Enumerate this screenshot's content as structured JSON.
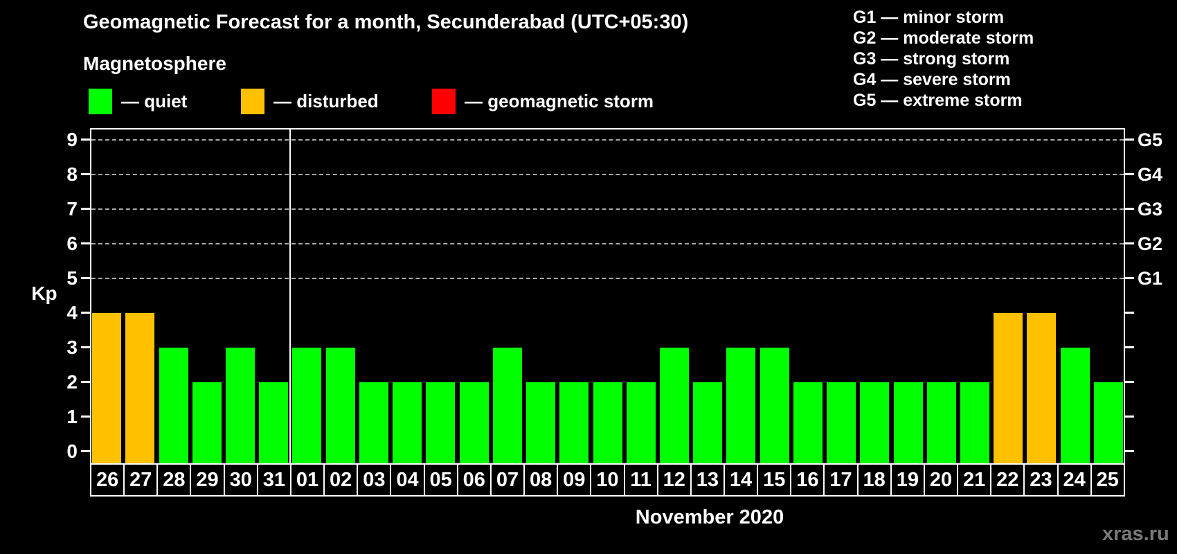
{
  "header": {
    "title": "Geomagnetic Forecast for a month, Secunderabad (UTC+05:30)",
    "subtitle": "Magnetosphere"
  },
  "legend": [
    {
      "name": "quiet",
      "label": "— quiet",
      "color": "#00ff00"
    },
    {
      "name": "disturbed",
      "label": "— disturbed",
      "color": "#ffc000"
    },
    {
      "name": "geomagnetic-storm",
      "label": "— geomagnetic storm",
      "color": "#ff0000"
    }
  ],
  "g_scale_legend": [
    "G1 — minor storm",
    "G2 — moderate storm",
    "G3 — strong storm",
    "G4 — severe storm",
    "G5 — extreme storm"
  ],
  "footer": {
    "month_label": "November 2020",
    "watermark": "xras.ru"
  },
  "chart_data": {
    "type": "bar",
    "title": "Geomagnetic Forecast for a month, Secunderabad (UTC+05:30)",
    "ylabel": "Kp",
    "xlabel": "November 2020",
    "ylim": [
      -0.35,
      9.35
    ],
    "yticks": [
      0,
      1,
      2,
      3,
      4,
      5,
      6,
      7,
      8,
      9
    ],
    "gridlines_at": [
      5,
      6,
      7,
      8,
      9
    ],
    "grid_style": "horizontal dashed gray",
    "legend_position": "top-left",
    "right_axis_labels": [
      {
        "kp": 5,
        "label": "G1"
      },
      {
        "kp": 6,
        "label": "G2"
      },
      {
        "kp": 7,
        "label": "G3"
      },
      {
        "kp": 8,
        "label": "G4"
      },
      {
        "kp": 9,
        "label": "G5"
      }
    ],
    "month_separator_after": "31",
    "state_colors": {
      "quiet": "#00ff00",
      "disturbed": "#ffc000",
      "storm": "#ff0000"
    },
    "categories": [
      "26",
      "27",
      "28",
      "29",
      "30",
      "31",
      "01",
      "02",
      "03",
      "04",
      "05",
      "06",
      "07",
      "08",
      "09",
      "10",
      "11",
      "12",
      "13",
      "14",
      "15",
      "16",
      "17",
      "18",
      "19",
      "20",
      "21",
      "22",
      "23",
      "24",
      "25"
    ],
    "values": [
      4,
      4,
      3,
      2,
      3,
      2,
      3,
      3,
      2,
      2,
      2,
      2,
      3,
      2,
      2,
      2,
      2,
      3,
      2,
      3,
      3,
      2,
      2,
      2,
      2,
      2,
      2,
      4,
      4,
      3,
      2
    ],
    "states": [
      "disturbed",
      "disturbed",
      "quiet",
      "quiet",
      "quiet",
      "quiet",
      "quiet",
      "quiet",
      "quiet",
      "quiet",
      "quiet",
      "quiet",
      "quiet",
      "quiet",
      "quiet",
      "quiet",
      "quiet",
      "quiet",
      "quiet",
      "quiet",
      "quiet",
      "quiet",
      "quiet",
      "quiet",
      "quiet",
      "quiet",
      "quiet",
      "disturbed",
      "disturbed",
      "quiet",
      "quiet"
    ]
  }
}
